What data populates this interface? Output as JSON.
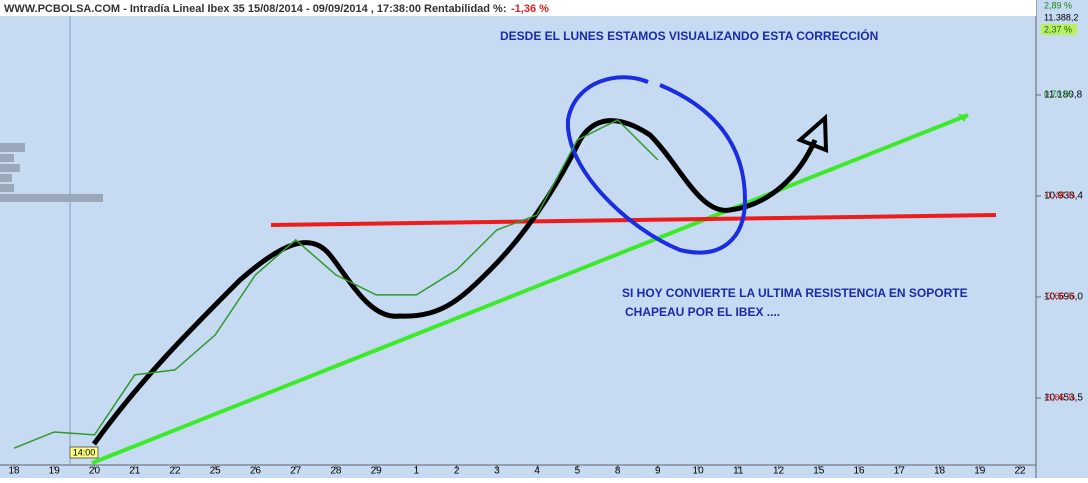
{
  "chart_data": {
    "type": "line",
    "title": "WWW.PCBOLSA.COM - Intradía Lineal Ibex 35 15/08/2014 - 09/09/2014 , 17:38:00 Rentabilidad %:",
    "return_label": "-1,36 %",
    "time_marker": "14:00",
    "right_header": [
      "2,89 %",
      "11.388,2",
      "2,37 %"
    ],
    "annotations": [
      "DESDE EL LUNES ESTAMOS VISUALIZANDO ESTA CORRECCIÓN",
      "SI HOY CONVIERTE LA ULTIMA RESISTENCIA EN SOPORTE",
      "CHAPEAU POR EL IBEX ...."
    ],
    "categories": [
      "18",
      "19",
      "20",
      "21",
      "22",
      "25",
      "26",
      "27",
      "28",
      "29",
      "1",
      "2",
      "3",
      "4",
      "5",
      "8",
      "9",
      "10",
      "11",
      "12",
      "15",
      "16",
      "17",
      "18",
      "19",
      "22"
    ],
    "series": [
      {
        "color": "#2e9a2e",
        "values": [
          10333,
          10372,
          10365,
          10509,
          10521,
          10605,
          10749,
          10833,
          10749,
          10701,
          10701,
          10761,
          10857,
          10893,
          11073,
          11121,
          11025,
          null,
          null,
          null,
          null,
          null,
          null,
          null,
          null,
          null
        ]
      }
    ],
    "ylim": [
      10292.7,
      11408.8
    ],
    "yticks": [
      {
        "value": 10453.5,
        "label": "10.453,5"
      },
      {
        "value": 10696.0,
        "label": "10.696,0"
      },
      {
        "value": 10938.4,
        "label": "10.938,4"
      },
      {
        "value": 11180.8,
        "label": "11.180,8"
      }
    ],
    "y2lim": [
      -7.3,
      2.75
    ],
    "y2ticks": [
      {
        "value": -5.85,
        "label": "-5,85 %"
      },
      {
        "value": -3.66,
        "label": "-3,66 %"
      },
      {
        "value": -1.48,
        "label": "-1,48 %"
      },
      {
        "value": 0.7,
        "label": "0,70 %"
      }
    ],
    "grid": false
  }
}
